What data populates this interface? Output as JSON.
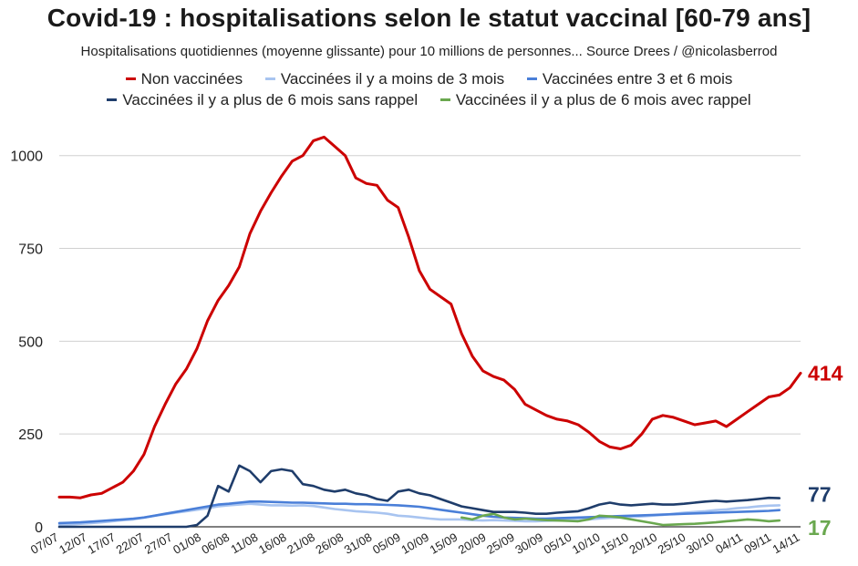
{
  "title": "Covid-19 : hospitalisations selon le statut vaccinal [60-79 ans]",
  "subtitle": "Hospitalisations quotidiennes (moyenne glissante) pour 10 millions de personnes... Source Drees / @nicolasberrod",
  "chart_data": {
    "type": "line",
    "title": "Covid-19 : hospitalisations selon le statut vaccinal [60-79 ans]",
    "subtitle": "Hospitalisations quotidiennes (moyenne glissante) pour 10 millions de personnes... Source Drees / @nicolasberrod",
    "xlabel": "",
    "ylabel": "",
    "ylim": [
      0,
      1100
    ],
    "yticks": [
      0,
      250,
      500,
      750,
      1000
    ],
    "grid": true,
    "legend": "top",
    "x_tick_labels": [
      "07/07",
      "12/07",
      "17/07",
      "22/07",
      "27/07",
      "01/08",
      "06/08",
      "11/08",
      "16/08",
      "21/08",
      "26/08",
      "31/08",
      "05/09",
      "10/09",
      "15/09",
      "20/09",
      "25/09",
      "30/09",
      "05/10",
      "10/10",
      "15/10",
      "20/10",
      "25/10",
      "30/10",
      "04/11",
      "09/11",
      "14/11"
    ],
    "x_step_days": 5,
    "series": [
      {
        "name": "Non vaccinées",
        "color": "#cc0000",
        "end_label": "414",
        "values": [
          80,
          80,
          78,
          86,
          90,
          105,
          120,
          150,
          195,
          270,
          330,
          385,
          425,
          480,
          555,
          610,
          650,
          700,
          790,
          850,
          900,
          945,
          985,
          1000,
          1040,
          1050,
          1025,
          1000,
          940,
          925,
          920,
          880,
          860,
          780,
          690,
          640,
          620,
          600,
          520,
          460,
          420,
          405,
          395,
          370,
          330,
          315,
          300,
          290,
          285,
          275,
          255,
          230,
          215,
          210,
          220,
          250,
          290,
          300,
          295,
          285,
          275,
          280,
          285,
          270,
          290,
          310,
          330,
          350,
          355,
          375,
          414
        ]
      },
      {
        "name": "Vaccinées il y a moins de 3 mois",
        "color": "#a8c4f0",
        "values": [
          5,
          6,
          8,
          10,
          12,
          15,
          18,
          20,
          25,
          30,
          34,
          38,
          42,
          46,
          50,
          55,
          58,
          60,
          62,
          60,
          58,
          58,
          57,
          58,
          56,
          52,
          48,
          45,
          42,
          40,
          38,
          35,
          30,
          28,
          25,
          22,
          20,
          20,
          20,
          18,
          17,
          18,
          17,
          16,
          15,
          15,
          16,
          17,
          18,
          18,
          20,
          22,
          24,
          25,
          27,
          28,
          30,
          32,
          35,
          38,
          40,
          42,
          45,
          47,
          50,
          52,
          55,
          57,
          58
        ]
      },
      {
        "name": "Vaccinées entre 3 et 6 mois",
        "color": "#4a7fd8",
        "values": [
          10,
          11,
          12,
          14,
          16,
          18,
          20,
          22,
          25,
          30,
          35,
          40,
          45,
          50,
          55,
          60,
          62,
          65,
          68,
          68,
          67,
          66,
          65,
          65,
          64,
          63,
          62,
          62,
          61,
          61,
          60,
          59,
          58,
          56,
          54,
          50,
          46,
          42,
          38,
          34,
          30,
          27,
          25,
          24,
          23,
          22,
          22,
          23,
          24,
          25,
          26,
          27,
          28,
          29,
          30,
          31,
          32,
          33,
          34,
          35,
          36,
          37,
          38,
          39,
          40,
          41,
          42,
          43,
          45
        ]
      },
      {
        "name": "Vaccinées il y a plus de 6 mois sans rappel",
        "color": "#1f3d6b",
        "end_label": "77",
        "values": [
          0,
          0,
          0,
          0,
          0,
          0,
          0,
          0,
          0,
          0,
          0,
          0,
          0,
          5,
          30,
          110,
          95,
          165,
          150,
          120,
          150,
          155,
          150,
          115,
          110,
          100,
          95,
          100,
          90,
          85,
          75,
          70,
          95,
          100,
          90,
          85,
          75,
          65,
          55,
          50,
          45,
          40,
          40,
          40,
          38,
          35,
          35,
          38,
          40,
          42,
          50,
          60,
          65,
          60,
          58,
          60,
          62,
          60,
          60,
          62,
          65,
          68,
          70,
          68,
          70,
          72,
          75,
          78,
          77
        ]
      },
      {
        "name": "Vaccinées il y a plus de 6 mois avec rappel",
        "color": "#6aa84f",
        "end_label": "17",
        "values": [
          null,
          null,
          null,
          null,
          null,
          null,
          null,
          null,
          null,
          null,
          null,
          null,
          null,
          null,
          null,
          null,
          null,
          null,
          null,
          null,
          null,
          null,
          null,
          null,
          null,
          null,
          null,
          null,
          null,
          null,
          null,
          null,
          null,
          null,
          null,
          null,
          null,
          null,
          25,
          20,
          30,
          35,
          25,
          20,
          22,
          20,
          18,
          17,
          16,
          15,
          20,
          30,
          28,
          25,
          20,
          15,
          10,
          5,
          6,
          7,
          8,
          10,
          12,
          15,
          17,
          20,
          18,
          15,
          17
        ]
      }
    ]
  }
}
